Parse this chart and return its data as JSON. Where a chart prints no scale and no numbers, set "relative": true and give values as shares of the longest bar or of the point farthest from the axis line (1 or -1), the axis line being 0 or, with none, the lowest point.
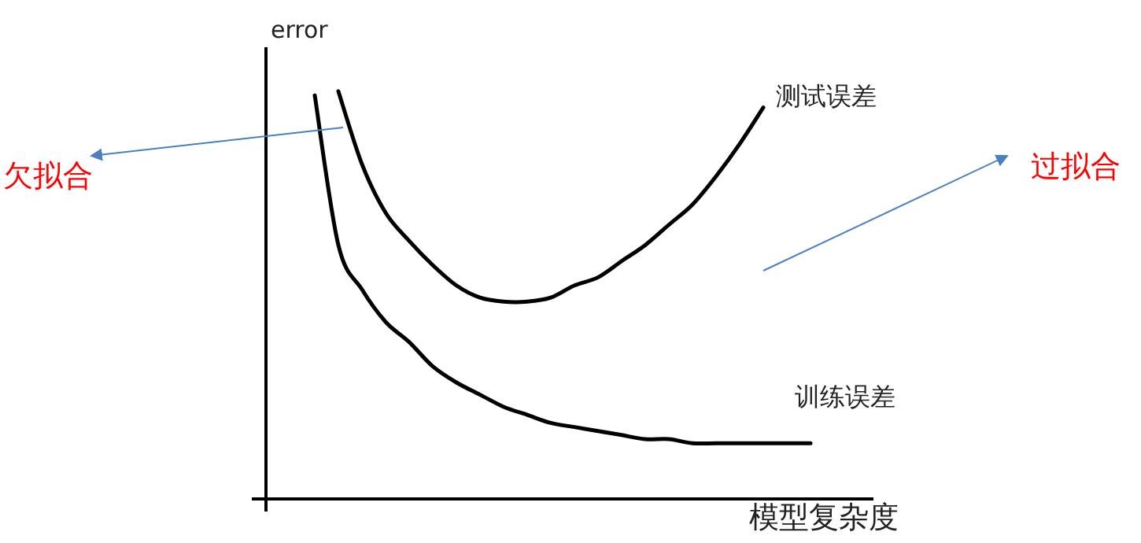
{
  "chart_data": {
    "type": "line",
    "relative": true,
    "xlabel": "模型复杂度",
    "ylabel": "error",
    "legend": false,
    "categories": [
      null,
      null,
      null,
      null,
      null,
      null,
      null,
      null,
      null,
      null,
      null,
      null,
      null,
      null,
      null,
      null,
      null,
      null,
      null,
      null,
      null,
      null
    ],
    "series": [
      {
        "name": "测试误差",
        "color": "#000000",
        "values": [
          null,
          1,
          0.82,
          0.7,
          0.63,
          0.57,
          0.52,
          0.49,
          0.48,
          0.48,
          0.49,
          0.52,
          0.54,
          0.58,
          0.62,
          0.67,
          0.72,
          0.79,
          0.87,
          0.96,
          null,
          null
        ]
      },
      {
        "name": "训练误差",
        "color": "#000000",
        "values": [
          0.99,
          0.62,
          0.51,
          0.43,
          0.38,
          0.32,
          0.28,
          0.25,
          0.22,
          0.2,
          0.18,
          0.17,
          0.16,
          0.15,
          0.14,
          0.14,
          0.13,
          0.13,
          0.13,
          0.13,
          0.13,
          0.13
        ]
      }
    ],
    "annotations": [
      "欠拟合",
      "过拟合"
    ]
  }
}
